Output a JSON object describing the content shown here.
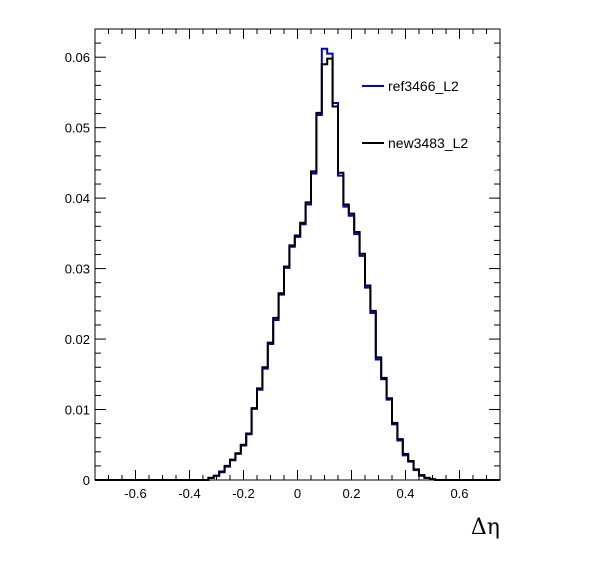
{
  "chart_data": {
    "type": "histogram",
    "xlabel": "Δη",
    "ylabel": "",
    "xlim": [
      -0.75,
      0.75
    ],
    "ylim": [
      0,
      0.064
    ],
    "grid": false,
    "legend_position": "top-right",
    "x_ticks": [
      "-0.6",
      "-0.4",
      "-0.2",
      "0",
      "0.2",
      "0.4",
      "0.6"
    ],
    "y_ticks": [
      "0",
      "0.01",
      "0.02",
      "0.03",
      "0.04",
      "0.05",
      "0.06"
    ],
    "bin_edges_start": -0.75,
    "bin_width": 0.02,
    "series": [
      {
        "name": "ref3466_L2",
        "color": "#0000cc",
        "values": [
          0,
          0,
          0,
          0,
          0,
          0,
          0,
          0,
          0,
          0,
          0,
          0,
          0,
          0,
          0,
          0,
          0,
          0,
          0,
          0,
          0,
          0.0003,
          0.0006,
          0.0011,
          0.0019,
          0.0028,
          0.0037,
          0.0049,
          0.0065,
          0.0101,
          0.0128,
          0.0158,
          0.0193,
          0.0227,
          0.0263,
          0.0301,
          0.0331,
          0.0345,
          0.0363,
          0.0391,
          0.0435,
          0.0518,
          0.0612,
          0.0605,
          0.0535,
          0.0432,
          0.0388,
          0.0375,
          0.0349,
          0.0318,
          0.0273,
          0.0237,
          0.0171,
          0.0143,
          0.0114,
          0.0079,
          0.0056,
          0.0035,
          0.0026,
          0.0014,
          0.0006,
          0.0003,
          0.0001,
          0,
          0,
          0,
          0,
          0,
          0,
          0,
          0,
          0,
          0,
          0,
          0
        ]
      },
      {
        "name": "new3483_L2",
        "color": "#000000",
        "values": [
          0,
          0,
          0,
          0,
          0,
          0,
          0,
          0,
          0,
          0,
          0,
          0,
          0,
          0,
          0,
          0,
          0,
          0,
          0,
          0,
          0,
          0.0003,
          0.0006,
          0.0012,
          0.002,
          0.0029,
          0.0038,
          0.005,
          0.0066,
          0.0102,
          0.013,
          0.016,
          0.0195,
          0.023,
          0.0265,
          0.0303,
          0.0333,
          0.0347,
          0.0365,
          0.0394,
          0.0438,
          0.0521,
          0.059,
          0.0598,
          0.053,
          0.0436,
          0.0391,
          0.0378,
          0.0352,
          0.0321,
          0.0276,
          0.024,
          0.0174,
          0.0145,
          0.0116,
          0.0081,
          0.0058,
          0.0037,
          0.0027,
          0.0015,
          0.0007,
          0.0003,
          0.0001,
          0,
          0,
          0,
          0,
          0,
          0,
          0,
          0,
          0,
          0,
          0,
          0
        ]
      }
    ]
  }
}
